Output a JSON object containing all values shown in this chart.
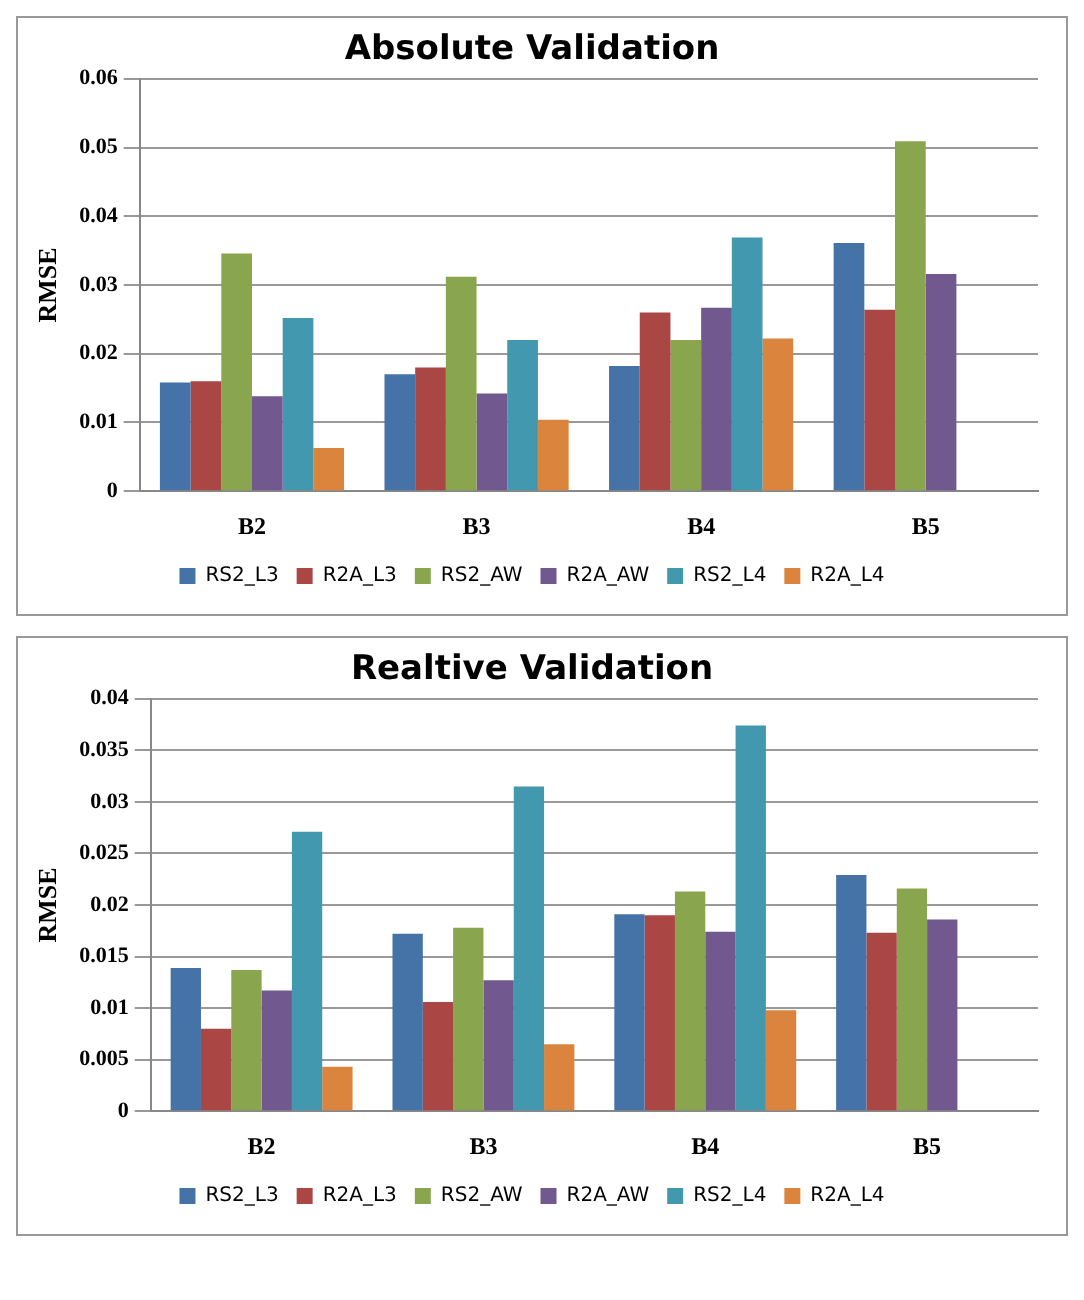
{
  "chart_data": [
    {
      "type": "bar",
      "title": "Absolute Validation",
      "ylabel": "RMSE",
      "categories": [
        "B2",
        "B3",
        "B4",
        "B5"
      ],
      "series": [
        {
          "name": "RS2_L3",
          "color": "#4572a7",
          "values": [
            0.0158,
            0.017,
            0.0182,
            0.0361
          ]
        },
        {
          "name": "R2A_L3",
          "color": "#aa4643",
          "values": [
            0.016,
            0.018,
            0.026,
            0.0264
          ]
        },
        {
          "name": "RS2_AW",
          "color": "#89a54e",
          "values": [
            0.0346,
            0.0312,
            0.022,
            0.0509
          ]
        },
        {
          "name": "R2A_AW",
          "color": "#71588f",
          "values": [
            0.0138,
            0.0142,
            0.0267,
            0.0316
          ]
        },
        {
          "name": "RS2_L4",
          "color": "#4198af",
          "values": [
            0.0252,
            0.022,
            0.0369,
            null
          ]
        },
        {
          "name": "R2A_L4",
          "color": "#db843d",
          "values": [
            0.0063,
            0.0104,
            0.0222,
            null
          ]
        }
      ],
      "ylim": [
        0,
        0.06
      ],
      "yticks": [
        0,
        0.01,
        0.02,
        0.03,
        0.04,
        0.05,
        0.06
      ],
      "grid": "y",
      "legend": "bottom"
    },
    {
      "type": "bar",
      "title": "Realtive Validation",
      "ylabel": "RMSE",
      "categories": [
        "B2",
        "B3",
        "B4",
        "B5"
      ],
      "series": [
        {
          "name": "RS2_L3",
          "color": "#4572a7",
          "values": [
            0.0139,
            0.0172,
            0.0191,
            0.0229
          ]
        },
        {
          "name": "R2A_L3",
          "color": "#aa4643",
          "values": [
            0.008,
            0.0106,
            0.019,
            0.0173
          ]
        },
        {
          "name": "RS2_AW",
          "color": "#89a54e",
          "values": [
            0.0137,
            0.0178,
            0.0213,
            0.0216
          ]
        },
        {
          "name": "R2A_AW",
          "color": "#71588f",
          "values": [
            0.0117,
            0.0127,
            0.0174,
            0.0186
          ]
        },
        {
          "name": "RS2_L4",
          "color": "#4198af",
          "values": [
            0.0271,
            0.0315,
            0.0374,
            null
          ]
        },
        {
          "name": "R2A_L4",
          "color": "#db843d",
          "values": [
            0.0043,
            0.0065,
            0.0098,
            null
          ]
        }
      ],
      "ylim": [
        0,
        0.04
      ],
      "yticks": [
        0,
        0.005,
        0.01,
        0.015,
        0.02,
        0.025,
        0.03,
        0.035,
        0.04
      ],
      "grid": "y",
      "legend": "bottom"
    }
  ]
}
